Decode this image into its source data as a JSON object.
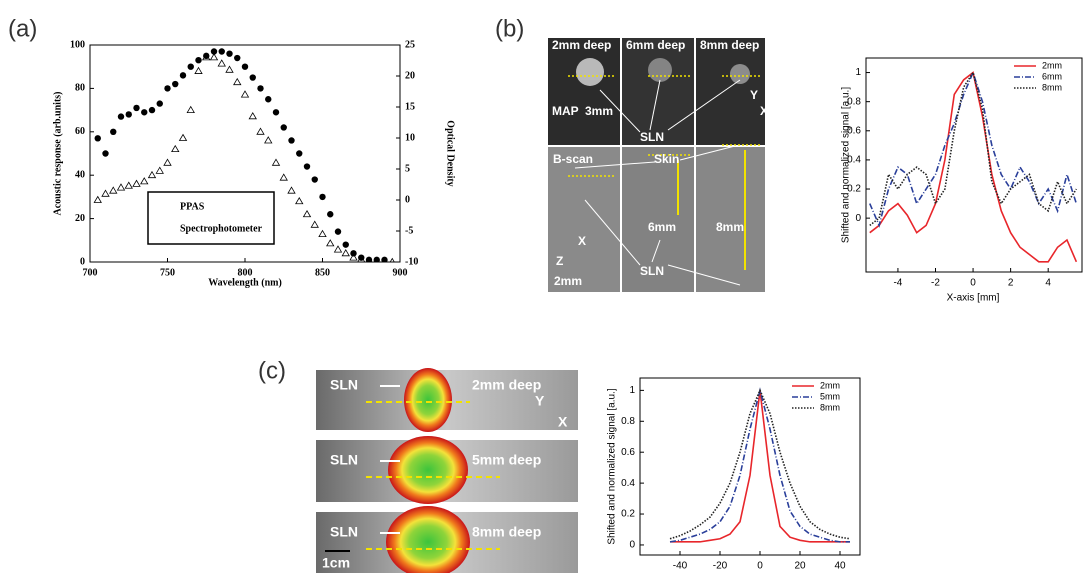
{
  "panel_labels": [
    "(a)",
    "(b)",
    "(c)"
  ],
  "image_b": {
    "top_labels": [
      "2mm deep",
      "6mm deep",
      "8mm deep"
    ],
    "map": "MAP",
    "scale_top": "3mm",
    "sln_top": "SLN",
    "axis_y": "Y",
    "axis_x": "X",
    "bscan": "B-scan",
    "skin": "Skin",
    "depth_6": "6mm",
    "depth_8": "8mm",
    "axis_z": "Z",
    "axis_x2": "X",
    "scale_bottom": "2mm",
    "sln_bottom": "SLN"
  },
  "image_c": {
    "rows": [
      {
        "sln": "SLN",
        "depth": "2mm deep"
      },
      {
        "sln": "SLN",
        "depth": "5mm deep"
      },
      {
        "sln": "SLN",
        "depth": "8mm deep"
      }
    ],
    "axis_y": "Y",
    "axis_x": "X",
    "scale": "1cm"
  },
  "chart_data": [
    {
      "type": "scatter",
      "xlabel": "Wavelength (nm)",
      "ylabel": "Acoustic response (arb.units)",
      "y2label": "Optical Density",
      "xlim": [
        700,
        900
      ],
      "xticks": [
        700,
        750,
        800,
        850,
        900
      ],
      "ylim": [
        0,
        100
      ],
      "yticks": [
        0,
        20,
        40,
        60,
        80,
        100
      ],
      "y2lim": [
        -10,
        25
      ],
      "y2ticks": [
        -10,
        -5,
        0,
        5,
        10,
        15,
        20,
        25
      ],
      "legend": "lower left",
      "x": [
        705,
        710,
        715,
        720,
        725,
        730,
        735,
        740,
        745,
        750,
        755,
        760,
        765,
        770,
        775,
        780,
        785,
        790,
        795,
        800,
        805,
        810,
        815,
        820,
        825,
        830,
        835,
        840,
        845,
        850,
        855,
        860,
        865,
        870,
        875,
        880,
        885,
        890,
        895
      ],
      "series": [
        {
          "name": "PPAS",
          "color": "#000000",
          "marker": "circle",
          "values": [
            57,
            50,
            60,
            67,
            68,
            71,
            69,
            70,
            73,
            80,
            82,
            86,
            90,
            93,
            95,
            97,
            97,
            96,
            94,
            90,
            85,
            80,
            75,
            69,
            62,
            56,
            50,
            44,
            38,
            30,
            22,
            14,
            8,
            4,
            2,
            1,
            1,
            1,
            null
          ]
        },
        {
          "name": "Spectrophotometer",
          "color": "#000000",
          "marker": "triangle",
          "axis": "y2",
          "values": [
            0,
            1,
            1.5,
            2,
            2.3,
            2.6,
            3,
            4,
            4.7,
            6,
            8.2,
            10,
            14.5,
            20.8,
            23,
            23,
            22,
            21,
            19,
            17,
            13.5,
            11,
            9.6,
            6,
            3.6,
            1.5,
            -0.2,
            -2.3,
            -4,
            -5.5,
            -7,
            -8,
            -8.6,
            -9.3,
            -9.6,
            -9.8,
            -10,
            -10,
            -10
          ]
        }
      ]
    },
    {
      "type": "line",
      "xlabel": "X-axis [mm]",
      "ylabel": "Shifted and normalized signal [a.u.]",
      "xlim": [
        -5.7,
        5.8
      ],
      "xticks": [
        -4,
        -2,
        0,
        2,
        4
      ],
      "ylim": [
        -0.37,
        1.1
      ],
      "yticks": [
        0,
        0.2,
        0.4,
        0.6,
        0.8,
        1
      ],
      "legend": "upper right",
      "x": [
        -5.5,
        -5,
        -4.5,
        -4,
        -3.5,
        -3,
        -2.5,
        -2,
        -1.5,
        -1,
        -0.5,
        0,
        0.5,
        1,
        1.5,
        2,
        2.5,
        3,
        3.5,
        4,
        4.5,
        5,
        5.5
      ],
      "series": [
        {
          "name": "2mm",
          "color": "#e8262b",
          "dash": "none",
          "values": [
            -0.1,
            -0.05,
            0.05,
            0.1,
            0.02,
            -0.1,
            -0.05,
            0.1,
            0.4,
            0.85,
            0.95,
            1,
            0.7,
            0.3,
            0.05,
            -0.1,
            -0.2,
            -0.25,
            -0.3,
            -0.3,
            -0.2,
            -0.15,
            -0.3
          ]
        },
        {
          "name": "6mm",
          "color": "#2a3f9a",
          "dash": "6 2 1 2",
          "values": [
            0.1,
            -0.05,
            0.2,
            0.35,
            0.3,
            0.1,
            0.2,
            0.3,
            0.5,
            0.65,
            0.85,
            1,
            0.8,
            0.5,
            0.3,
            0.2,
            0.35,
            0.25,
            0.1,
            0.2,
            0.05,
            0.3,
            0.1
          ]
        },
        {
          "name": "8mm",
          "color": "#222222",
          "dash": "1.5 1.5",
          "values": [
            -0.05,
            0,
            0.3,
            0.2,
            0.3,
            0.35,
            0.3,
            0.1,
            0.2,
            0.6,
            0.9,
            1,
            0.75,
            0.25,
            0.1,
            0.2,
            0.25,
            0.3,
            0.1,
            0.05,
            0.25,
            0.1,
            0.2
          ]
        }
      ]
    },
    {
      "type": "line",
      "ylabel": "Shifted and normalized signal [a.u.]",
      "xlim": [
        -60,
        50
      ],
      "xticks": [
        -40,
        -20,
        0,
        20,
        40
      ],
      "ylim": [
        -0.065,
        1.08
      ],
      "yticks": [
        0,
        0.2,
        0.4,
        0.6,
        0.8,
        1
      ],
      "legend": "upper right",
      "x": [
        -45,
        -40,
        -35,
        -30,
        -25,
        -20,
        -15,
        -10,
        -5,
        0,
        5,
        10,
        15,
        20,
        25,
        30,
        35,
        40,
        45
      ],
      "series": [
        {
          "name": "2mm",
          "color": "#e8262b",
          "dash": "none",
          "values": [
            0.02,
            0.02,
            0.02,
            0.02,
            0.03,
            0.04,
            0.07,
            0.15,
            0.45,
            1,
            0.45,
            0.12,
            0.05,
            0.03,
            0.02,
            0.02,
            0.02,
            0.02,
            0.02
          ]
        },
        {
          "name": "5mm",
          "color": "#2a3f9a",
          "dash": "6 2 1 2",
          "values": [
            0.02,
            0.03,
            0.05,
            0.07,
            0.1,
            0.15,
            0.25,
            0.45,
            0.75,
            1,
            0.75,
            0.45,
            0.22,
            0.12,
            0.07,
            0.05,
            0.03,
            0.02,
            0.02
          ]
        },
        {
          "name": "8mm",
          "color": "#222222",
          "dash": "1.5 1.5",
          "values": [
            0.04,
            0.06,
            0.09,
            0.13,
            0.18,
            0.27,
            0.4,
            0.6,
            0.85,
            1,
            0.85,
            0.6,
            0.4,
            0.25,
            0.15,
            0.1,
            0.07,
            0.05,
            0.04
          ]
        }
      ]
    }
  ]
}
